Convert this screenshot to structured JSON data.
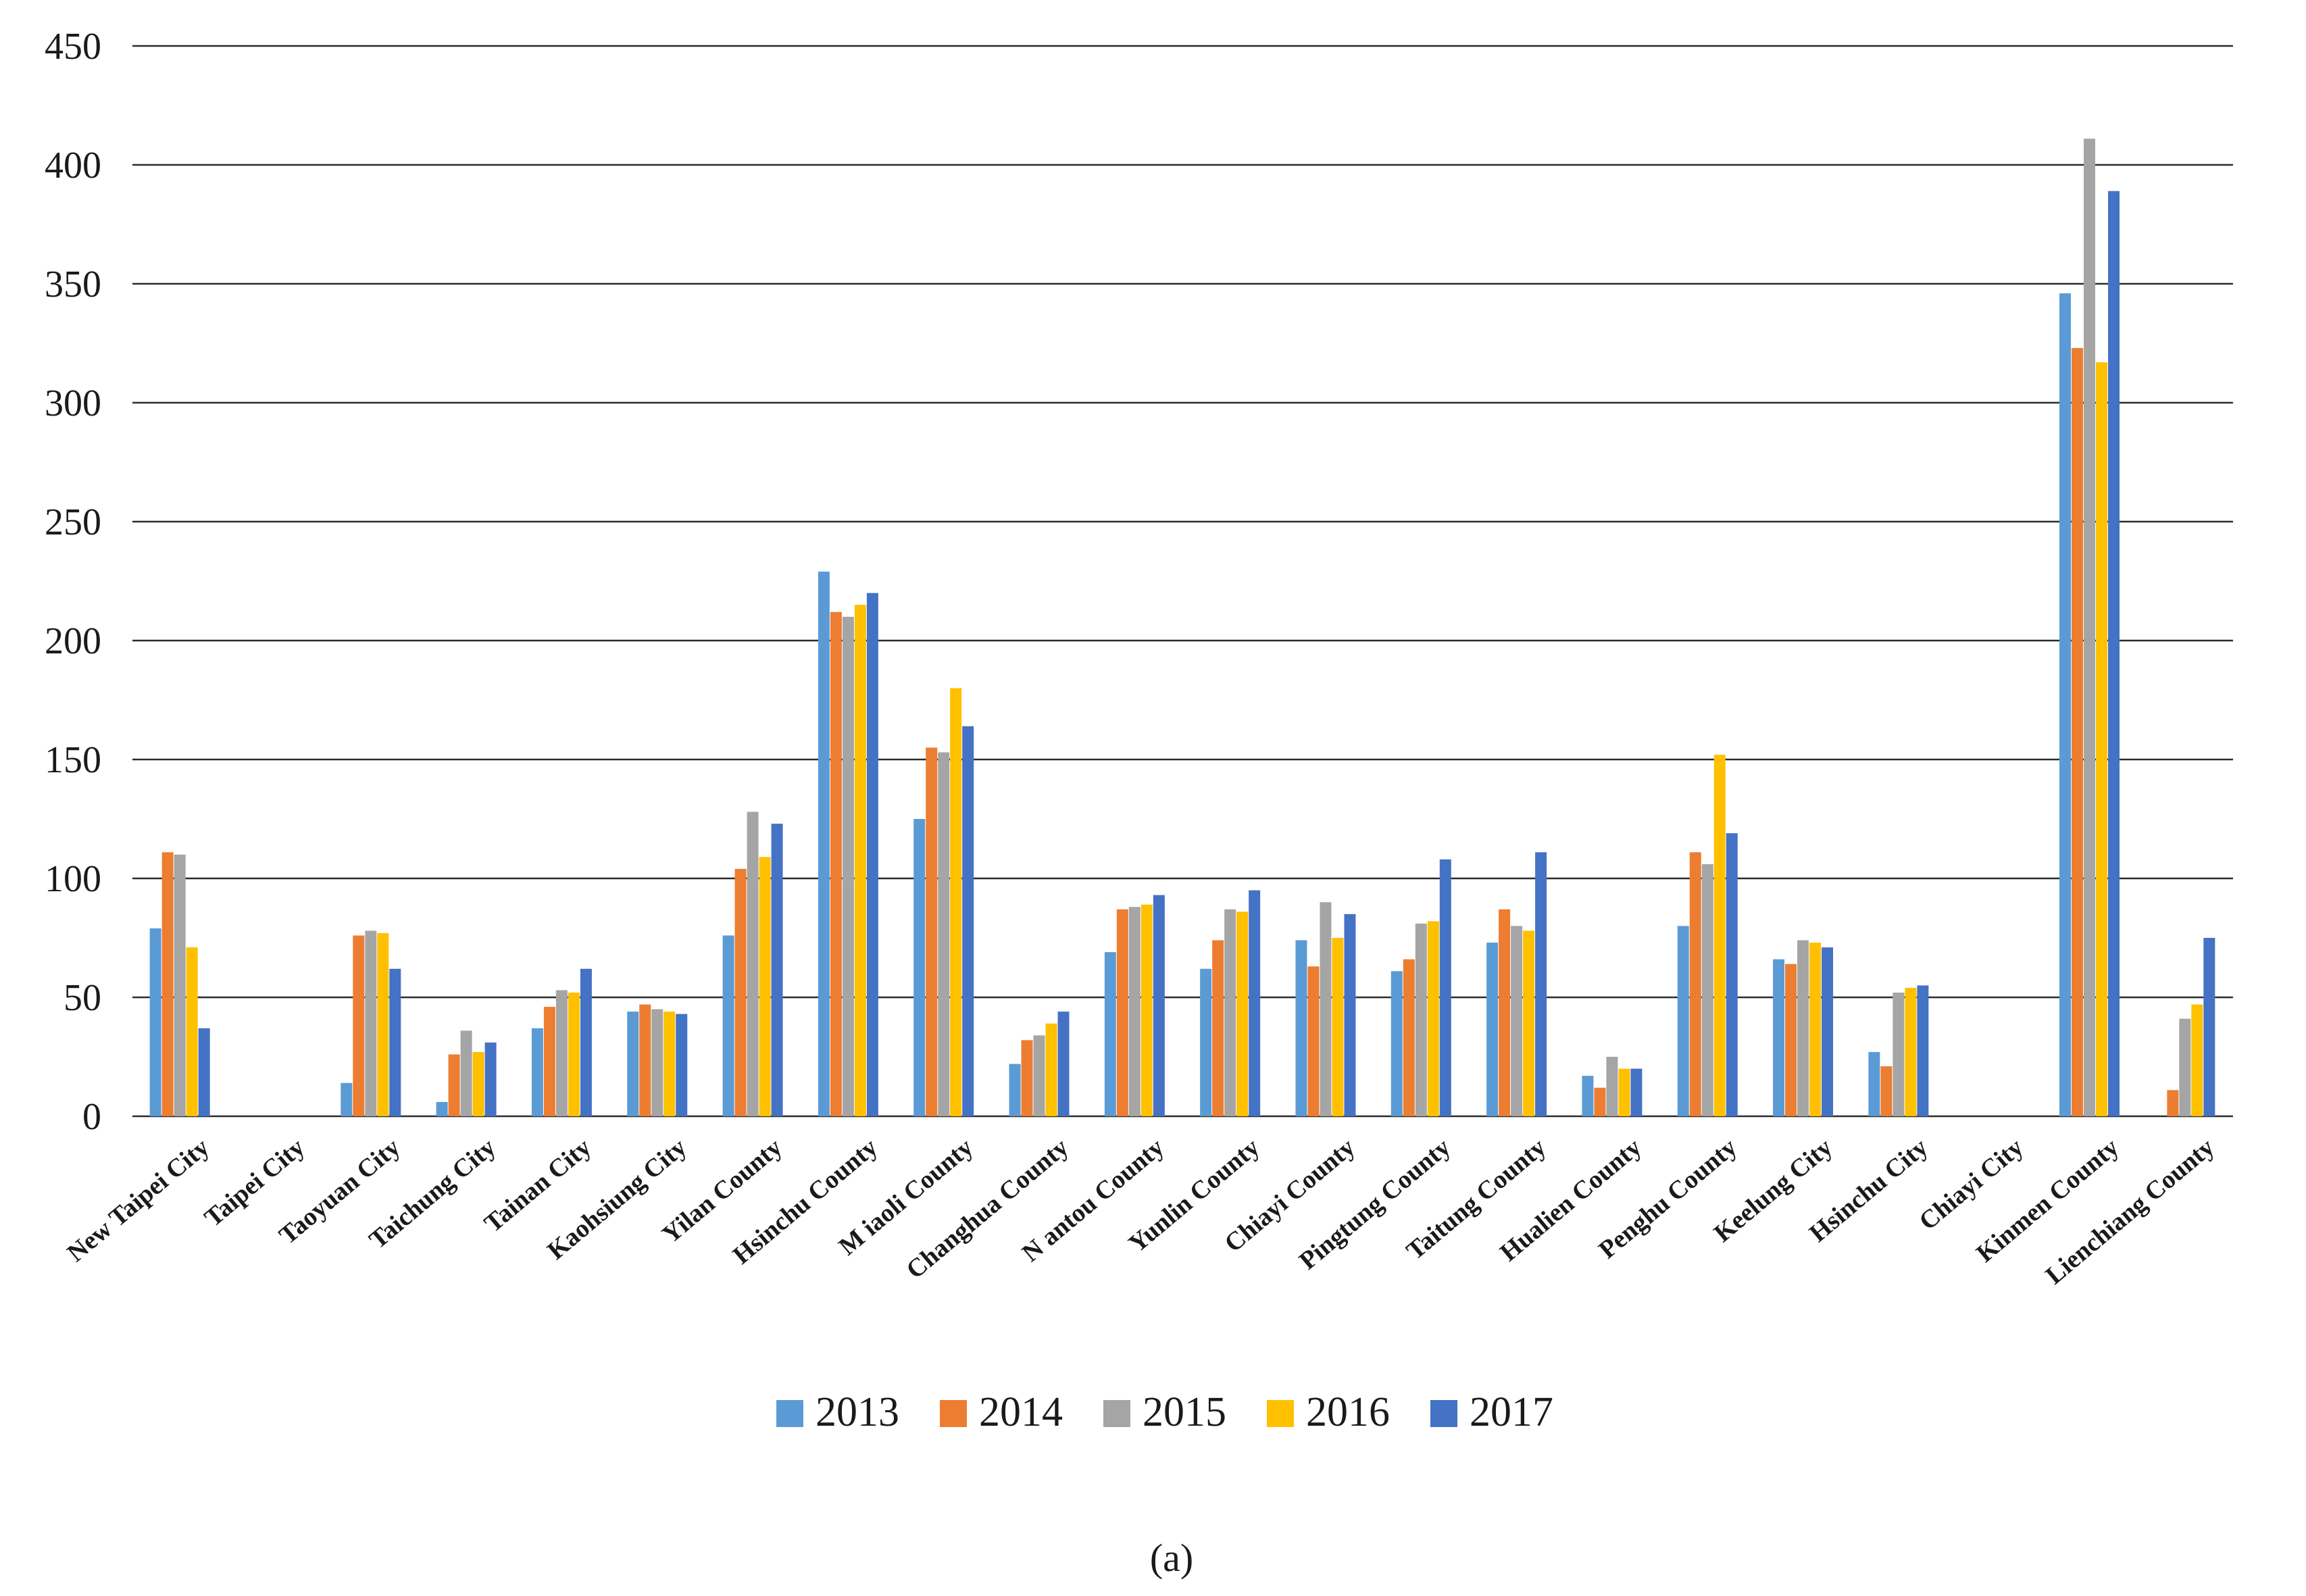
{
  "chart_data": {
    "type": "bar",
    "categories": [
      "New Taipei City",
      "Taipei City",
      "Taoyuan City",
      "Taichung City",
      "Tainan City",
      "Kaohsiung City",
      "Yilan County",
      "Hsinchu County",
      "M iaoli County",
      "Changhua County",
      "N antou County",
      "Yunlin County",
      "Chiayi County",
      "Pingtung County",
      "Taitung County",
      "Hualien County",
      "Penghu County",
      "Keelung City",
      "Hsinchu City",
      "Chiayi City",
      "Kinmen County",
      "Lienchiang County"
    ],
    "series": [
      {
        "name": "2013",
        "color": "#5B9BD5",
        "values": [
          79,
          null,
          14,
          6,
          37,
          44,
          76,
          229,
          125,
          22,
          69,
          62,
          74,
          61,
          73,
          17,
          80,
          66,
          27,
          null,
          346,
          null
        ]
      },
      {
        "name": "2014",
        "color": "#ED7D31",
        "values": [
          111,
          null,
          76,
          26,
          46,
          47,
          104,
          212,
          155,
          32,
          87,
          74,
          63,
          66,
          87,
          12,
          111,
          64,
          21,
          null,
          323,
          11
        ]
      },
      {
        "name": "2015",
        "color": "#A5A5A5",
        "values": [
          110,
          null,
          78,
          36,
          53,
          45,
          128,
          210,
          153,
          34,
          88,
          87,
          90,
          81,
          80,
          25,
          106,
          74,
          52,
          null,
          411,
          41
        ]
      },
      {
        "name": "2016",
        "color": "#FFC000",
        "values": [
          71,
          null,
          77,
          27,
          52,
          44,
          109,
          215,
          180,
          39,
          89,
          86,
          75,
          82,
          78,
          20,
          152,
          73,
          54,
          null,
          317,
          47
        ]
      },
      {
        "name": "2017",
        "color": "#4472C4",
        "values": [
          37,
          null,
          62,
          31,
          62,
          43,
          123,
          220,
          164,
          44,
          93,
          95,
          85,
          108,
          111,
          20,
          119,
          71,
          55,
          null,
          389,
          75
        ]
      }
    ],
    "yticks": [
      "0",
      "50",
      "100",
      "150",
      "200",
      "250",
      "300",
      "350",
      "400",
      "450"
    ],
    "ylim": [
      0,
      450
    ],
    "grid": true,
    "legend_position": "bottom",
    "caption": "(a)"
  }
}
